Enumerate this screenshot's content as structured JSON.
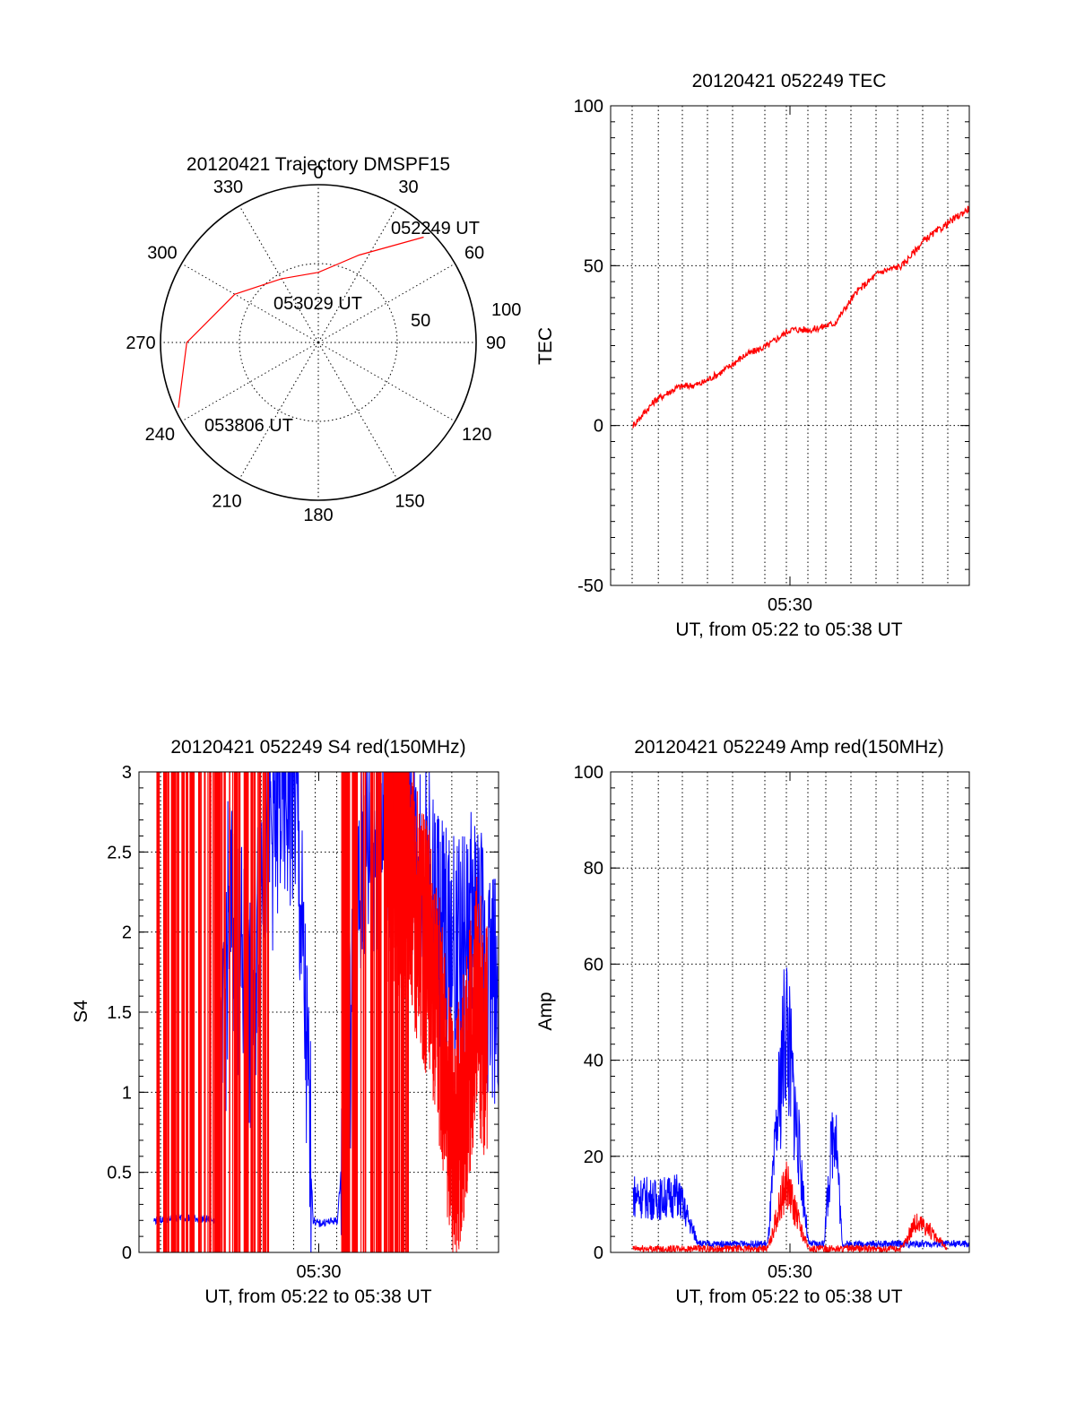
{
  "colors": {
    "red": "#ff0000",
    "blue": "#0000ff",
    "axes": "#000000",
    "background": "#ffffff"
  },
  "chart_data": [
    {
      "type": "polar",
      "title": "20120421 Trajectory DMSPF15",
      "angle_labels": [
        "0",
        "30",
        "60",
        "90",
        "120",
        "150",
        "180",
        "210",
        "240",
        "270",
        "300",
        "330"
      ],
      "radius_labels": [
        "50",
        "100"
      ],
      "rlim": [
        0,
        100
      ],
      "grid": true,
      "trajectory": {
        "color": "red",
        "points": [
          {
            "az": 45,
            "el": 5
          },
          {
            "az": 25,
            "el": 35
          },
          {
            "az": 0,
            "el": 50
          },
          {
            "az": 330,
            "el": 48
          },
          {
            "az": 300,
            "el": 35
          },
          {
            "az": 270,
            "el": 15
          },
          {
            "az": 245,
            "el": 2
          }
        ],
        "annotations": [
          "052249 UT",
          "053029 UT",
          "053806 UT"
        ]
      }
    },
    {
      "type": "line",
      "title": "20120421 052249 TEC",
      "xlabel": "UT, from 05:22 to 05:38 UT",
      "ylabel": "TEC",
      "xlim": [
        "05:22",
        "05:38"
      ],
      "ylim": [
        -50,
        100
      ],
      "x_ticks": [
        "05:30"
      ],
      "y_ticks": [
        "-50",
        "0",
        "50",
        "100"
      ],
      "grid": true,
      "series": [
        {
          "color": "red",
          "x": [
            "05:23",
            "05:24",
            "05:25",
            "05:26",
            "05:27",
            "05:28",
            "05:29",
            "05:30",
            "05:31",
            "05:32",
            "05:33",
            "05:34",
            "05:35",
            "05:36",
            "05:37",
            "05:38"
          ],
          "values": [
            0,
            8,
            12,
            13,
            17,
            22,
            25,
            30,
            30,
            32,
            42,
            48,
            50,
            58,
            63,
            68
          ]
        }
      ]
    },
    {
      "type": "line",
      "title": "20120421 052249 S4 red(150MHz)",
      "xlabel": "UT, from 05:22 to 05:38 UT",
      "ylabel": "S4",
      "xlim": [
        "05:22",
        "05:38"
      ],
      "ylim": [
        0,
        3
      ],
      "x_ticks": [
        "05:30"
      ],
      "y_ticks": [
        "0",
        "0.5",
        "1",
        "1.5",
        "2",
        "2.5",
        "3"
      ],
      "grid": true,
      "series": [
        {
          "color": "blue",
          "x": [
            "05:22:40",
            "05:24",
            "05:25:30",
            "05:26",
            "05:26:30",
            "05:27",
            "05:27:30",
            "05:28",
            "05:28:30",
            "05:29",
            "05:29:45",
            "05:30",
            "05:30:50",
            "05:32",
            "05:33",
            "05:34",
            "05:35",
            "05:36",
            "05:37",
            "05:38"
          ],
          "values": [
            0.2,
            0.22,
            0.2,
            2.2,
            1.8,
            1.4,
            2.5,
            2.7,
            2.9,
            2.8,
            0.2,
            0.18,
            0.2,
            2.5,
            2.7,
            2.6,
            2.2,
            1.8,
            2.0,
            1.6
          ]
        },
        {
          "color": "red",
          "x": [
            "05:33",
            "05:34",
            "05:35",
            "05:35:30",
            "05:36",
            "05:36:30",
            "05:37",
            "05:37:30"
          ],
          "values": [
            2.5,
            2.3,
            1.8,
            1.3,
            0.6,
            1.0,
            1.6,
            1.3
          ]
        }
      ]
    },
    {
      "type": "line",
      "title": "20120421 052249 Amp red(150MHz)",
      "xlabel": "UT, from 05:22 to 05:38 UT",
      "ylabel": "Amp",
      "xlim": [
        "05:22",
        "05:38"
      ],
      "ylim": [
        0,
        100
      ],
      "x_ticks": [
        "05:30"
      ],
      "y_ticks": [
        "0",
        "20",
        "40",
        "60",
        "80",
        "100"
      ],
      "grid": true,
      "series": [
        {
          "color": "blue",
          "x": [
            "05:23",
            "05:24",
            "05:25",
            "05:26",
            "05:27",
            "05:28",
            "05:29",
            "05:29:50",
            "05:30",
            "05:30:50",
            "05:31:30",
            "05:32",
            "05:32:20",
            "05:33",
            "05:34",
            "05:35",
            "05:36",
            "05:37",
            "05:38"
          ],
          "values": [
            12,
            11,
            12,
            1,
            1,
            1,
            1,
            50,
            40,
            1,
            1,
            30,
            1,
            1,
            1,
            1,
            1,
            1,
            1
          ]
        },
        {
          "color": "red",
          "x": [
            "05:23",
            "05:25",
            "05:26",
            "05:29",
            "05:29:50",
            "05:30",
            "05:30:50",
            "05:35",
            "05:35:30",
            "05:36",
            "05:37"
          ],
          "values": [
            0,
            0,
            0,
            0,
            15,
            12,
            0,
            0,
            6,
            6,
            0
          ]
        }
      ]
    }
  ]
}
